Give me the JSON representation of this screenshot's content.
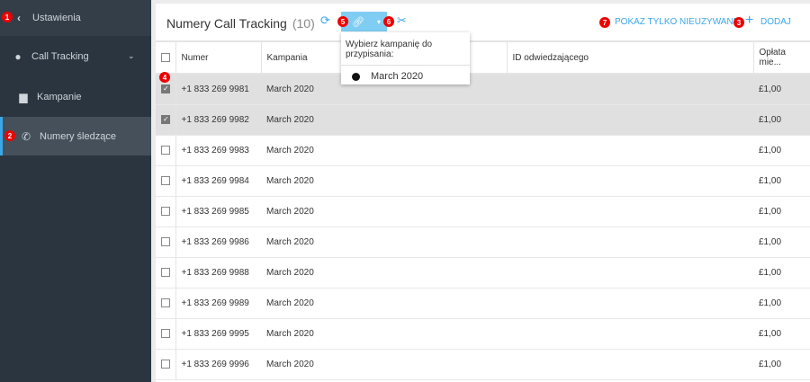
{
  "sidebar": {
    "items": [
      {
        "label": "Ustawienia",
        "icon": "chevron-left-icon",
        "badge": "1"
      },
      {
        "label": "Call Tracking",
        "icon": "globe-icon"
      },
      {
        "label": "Kampanie",
        "icon": "bag-icon"
      },
      {
        "label": "Numery śledzące",
        "icon": "phone-forward-icon",
        "badge": "2",
        "active": true
      }
    ]
  },
  "header": {
    "title": "Numery Call Tracking",
    "count": "(10)",
    "badge_link": "5",
    "badge_unlink": "6",
    "badge_show_unused": "7",
    "badge_add": "3",
    "show_unused": "POKAZ TYLKO NIEUZYWANE.",
    "add": "DODAJ"
  },
  "dropdown": {
    "heading": "Wybierz kampanię do przypisania:",
    "items": [
      "March 2020"
    ]
  },
  "table": {
    "badge_select": "4",
    "columns": [
      "Numer",
      "Kampania",
      "",
      "ID odwiedzającego",
      "Opłata mie..."
    ],
    "rows": [
      {
        "number": "+1 833 269 9981",
        "campaign": "March 2020",
        "fee": "£1,00",
        "checked": true
      },
      {
        "number": "+1 833 269 9982",
        "campaign": "March 2020",
        "fee": "£1,00",
        "checked": true
      },
      {
        "number": "+1 833 269 9983",
        "campaign": "March 2020",
        "fee": "£1,00",
        "checked": false
      },
      {
        "number": "+1 833 269 9984",
        "campaign": "March 2020",
        "fee": "£1,00",
        "checked": false
      },
      {
        "number": "+1 833 269 9985",
        "campaign": "March 2020",
        "fee": "£1,00",
        "checked": false
      },
      {
        "number": "+1 833 269 9986",
        "campaign": "March 2020",
        "fee": "£1,00",
        "checked": false
      },
      {
        "number": "+1 833 269 9988",
        "campaign": "March 2020",
        "fee": "£1,00",
        "checked": false
      },
      {
        "number": "+1 833 269 9989",
        "campaign": "March 2020",
        "fee": "£1,00",
        "checked": false
      },
      {
        "number": "+1 833 269 9995",
        "campaign": "March 2020",
        "fee": "£1,00",
        "checked": false
      },
      {
        "number": "+1 833 269 9996",
        "campaign": "March 2020",
        "fee": "£1,00",
        "checked": false
      }
    ]
  },
  "colors": {
    "accent": "#3aa7e8",
    "sidebar": "#2b3540",
    "badge": "#e00000"
  }
}
